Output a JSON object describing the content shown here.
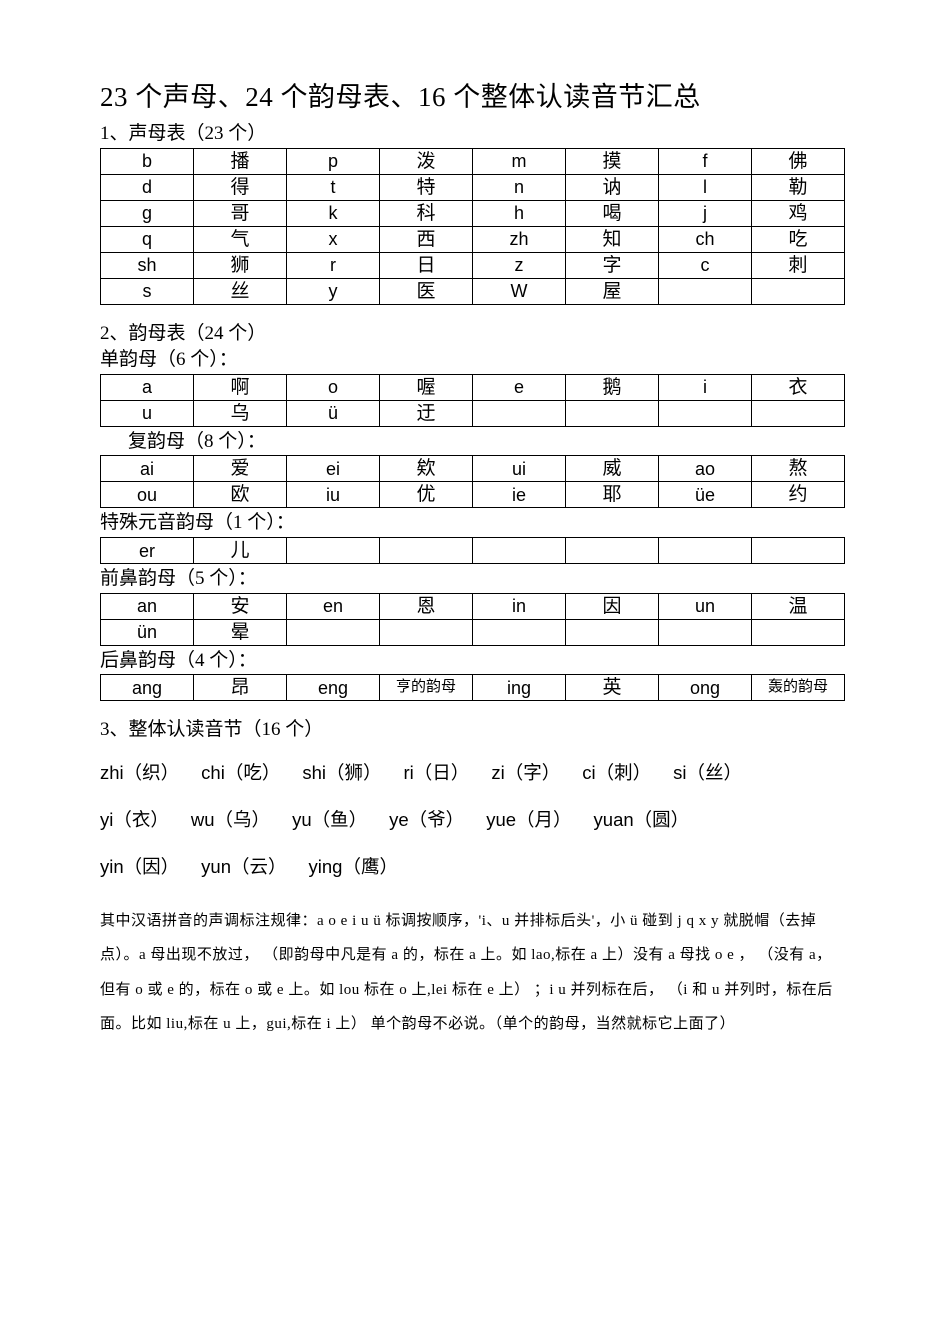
{
  "colors": {
    "text": "#000000",
    "background": "#ffffff",
    "border": "#000000"
  },
  "title": "23 个声母、24 个韵母表、16 个整体认读音节汇总",
  "sec1": {
    "heading": "1、声母表（23 个）",
    "rows": [
      [
        "b",
        "播",
        "p",
        "泼",
        "m",
        "摸",
        "f",
        "佛"
      ],
      [
        "d",
        "得",
        "t",
        "特",
        "n",
        "讷",
        "l",
        "勒"
      ],
      [
        "g",
        "哥",
        "k",
        "科",
        "h",
        "喝",
        "j",
        "鸡"
      ],
      [
        "q",
        "气",
        "x",
        "西",
        "zh",
        "知",
        "ch",
        "吃"
      ],
      [
        "sh",
        "狮",
        "r",
        "日",
        "z",
        "字",
        "c",
        "刺"
      ],
      [
        "s",
        "丝",
        "y",
        "医",
        "W",
        "屋",
        "",
        ""
      ]
    ]
  },
  "sec2": {
    "heading": "2、韵母表（24 个）",
    "sub1": "单韵母（6 个）：",
    "rows1": [
      [
        "a",
        "啊",
        "o",
        "喔",
        "e",
        "鹅",
        "i",
        "衣"
      ],
      [
        "u",
        "乌",
        "ü",
        "迂",
        "",
        "",
        "",
        ""
      ]
    ],
    "sub2": "复韵母（8 个）：",
    "rows2": [
      [
        "ai",
        "爱",
        "ei",
        "欸",
        "ui",
        "威",
        "ao",
        "熬"
      ],
      [
        "ou",
        "欧",
        "iu",
        "优",
        "ie",
        "耶",
        "üe",
        "约"
      ]
    ],
    "sub3": "特殊元音韵母（1 个）：",
    "rows3": [
      [
        "er",
        "儿",
        "",
        "",
        "",
        "",
        "",
        ""
      ]
    ],
    "sub4": "前鼻韵母（5 个）：",
    "rows4": [
      [
        "an",
        "安",
        "en",
        "恩",
        "in",
        "因",
        "un",
        "温"
      ],
      [
        "ün",
        "晕",
        "",
        "",
        "",
        "",
        "",
        ""
      ]
    ],
    "sub5": "后鼻韵母（4 个）：",
    "rows5": [
      [
        "ang",
        "昂",
        "eng",
        "亨的韵母",
        "ing",
        "英",
        "ong",
        "轰的韵母"
      ]
    ],
    "smallCells": [
      "亨的韵母",
      "轰的韵母"
    ]
  },
  "sec3": {
    "heading": "3、整体认读音节（16 个）",
    "rows": [
      [
        [
          "zhi",
          "织"
        ],
        [
          "chi",
          "吃"
        ],
        [
          "shi",
          "狮"
        ],
        [
          "ri",
          "日"
        ],
        [
          "zi",
          "字"
        ],
        [
          "ci",
          "刺"
        ],
        [
          "si",
          "丝"
        ]
      ],
      [
        [
          "yi",
          "衣"
        ],
        [
          "wu",
          "乌"
        ],
        [
          "yu",
          "鱼"
        ],
        [
          "ye",
          "爷"
        ],
        [
          "yue",
          "月"
        ],
        [
          "yuan",
          "圆"
        ]
      ],
      [
        [
          "yin",
          "因"
        ],
        [
          "yun",
          "云"
        ],
        [
          "ying",
          "鹰"
        ]
      ]
    ]
  },
  "note": "其中汉语拼音的声调标注规律：a o e i u ü 标调按顺序，'i、u 并排标后头'，小 ü 碰到 j q x y 就脱帽（去掉点）。a 母出现不放过，  （即韵母中凡是有 a 的，标在 a 上。如 lao,标在 a 上）没有 a 母找 o e ，  （没有 a，但有 o 或 e 的，标在  o 或 e  上。如 lou 标在 o 上,lei 标在 e 上）  ；i u 并列标在后，  （i 和 u 并列时，标在后面。比如 liu,标在 u 上，gui,标在 i  上）  单个韵母不必说。（单个的韵母，当然就标它上面了）"
}
